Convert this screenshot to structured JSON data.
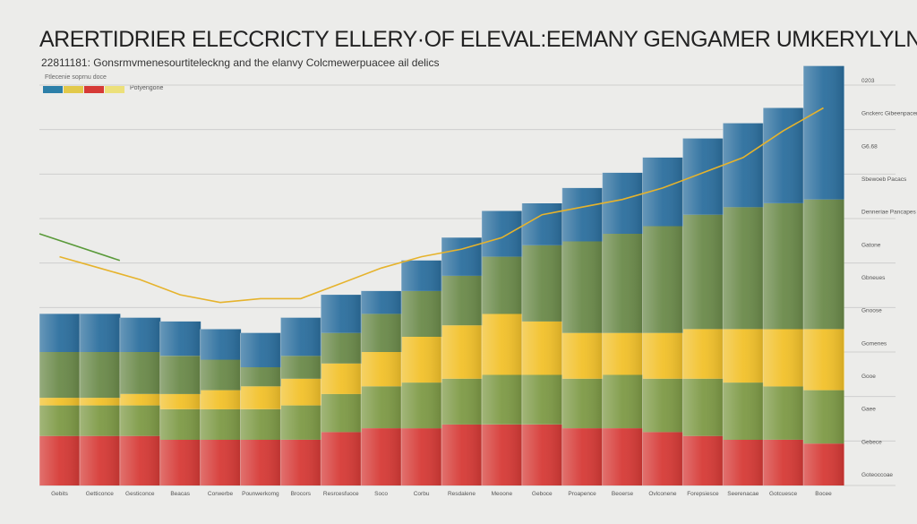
{
  "header": {
    "title": "ARERTIDRIER ELECCRICTY ELLERY·OF ELEVAL:EEMANY  GENGAMER UMKERYLYLN",
    "subtitle": "22811181: Gonsrmvmenesourtiteleckng and the elanvy Colcmewerpuacee ail delics",
    "legend_note": "Ftlecenie soprnu doce",
    "legend_label": "Potyengone"
  },
  "chart_data": {
    "type": "area",
    "stacked": true,
    "title": "ARERTIDRIER ELECCRICTY ELLERY·OF ELEVAL:EEMANY  GENGAMER UMKERYLYLN",
    "x": [
      "Gebits",
      "Getticonce",
      "Gesticonce",
      "Beacas",
      "Corwerbe",
      "Pounwerkomg",
      "Brocors",
      "Resrcesfuoce",
      "Soco",
      "Corbu",
      "Resdalene",
      "Meoone",
      "Geboce",
      "Proapence",
      "Beoerse",
      "Ovlconene",
      "Forepsiesce",
      "Seerenacae",
      "Gotcuesce",
      "Bocee"
    ],
    "series": [
      {
        "color": "#d63a36",
        "values": [
          13,
          13,
          13,
          12,
          12,
          12,
          12,
          14,
          15,
          15,
          16,
          16,
          16,
          15,
          15,
          14,
          13,
          12,
          12,
          11
        ]
      },
      {
        "color": "#7e9a46",
        "values": [
          8,
          8,
          8,
          8,
          8,
          8,
          9,
          10,
          11,
          12,
          12,
          13,
          13,
          13,
          14,
          14,
          15,
          15,
          14,
          14
        ]
      },
      {
        "color": "#f2c12a",
        "values": [
          2,
          2,
          3,
          4,
          5,
          6,
          7,
          8,
          9,
          12,
          14,
          16,
          14,
          12,
          11,
          12,
          13,
          14,
          15,
          16
        ]
      },
      {
        "color": "#6b8a4a",
        "values": [
          12,
          12,
          11,
          10,
          8,
          5,
          6,
          8,
          10,
          12,
          13,
          15,
          20,
          24,
          26,
          28,
          30,
          32,
          33,
          34
        ]
      },
      {
        "color": "#2c6f9e",
        "values": [
          10,
          10,
          9,
          9,
          8,
          9,
          10,
          10,
          6,
          8,
          10,
          12,
          11,
          14,
          16,
          18,
          20,
          22,
          25,
          35
        ]
      }
    ],
    "line": {
      "color": "#e6b32c",
      "values": [
        60,
        57,
        54,
        50,
        48,
        49,
        49,
        53,
        57,
        60,
        62,
        65,
        71,
        73,
        75,
        78,
        82,
        86,
        93,
        99
      ]
    },
    "ylim": [
      0,
      105
    ],
    "grid": true,
    "right_ticks": [
      "0203",
      "Gnckerc Gibeenpacen",
      "G6.68",
      "Sbewoeb Pacacs",
      "Denneriae Pancapes",
      "Gatone",
      "Gbneues",
      "Gnoose",
      "Gomenes",
      "Gooe",
      "Gaee",
      "Gebece",
      "Goteoccoae"
    ]
  }
}
